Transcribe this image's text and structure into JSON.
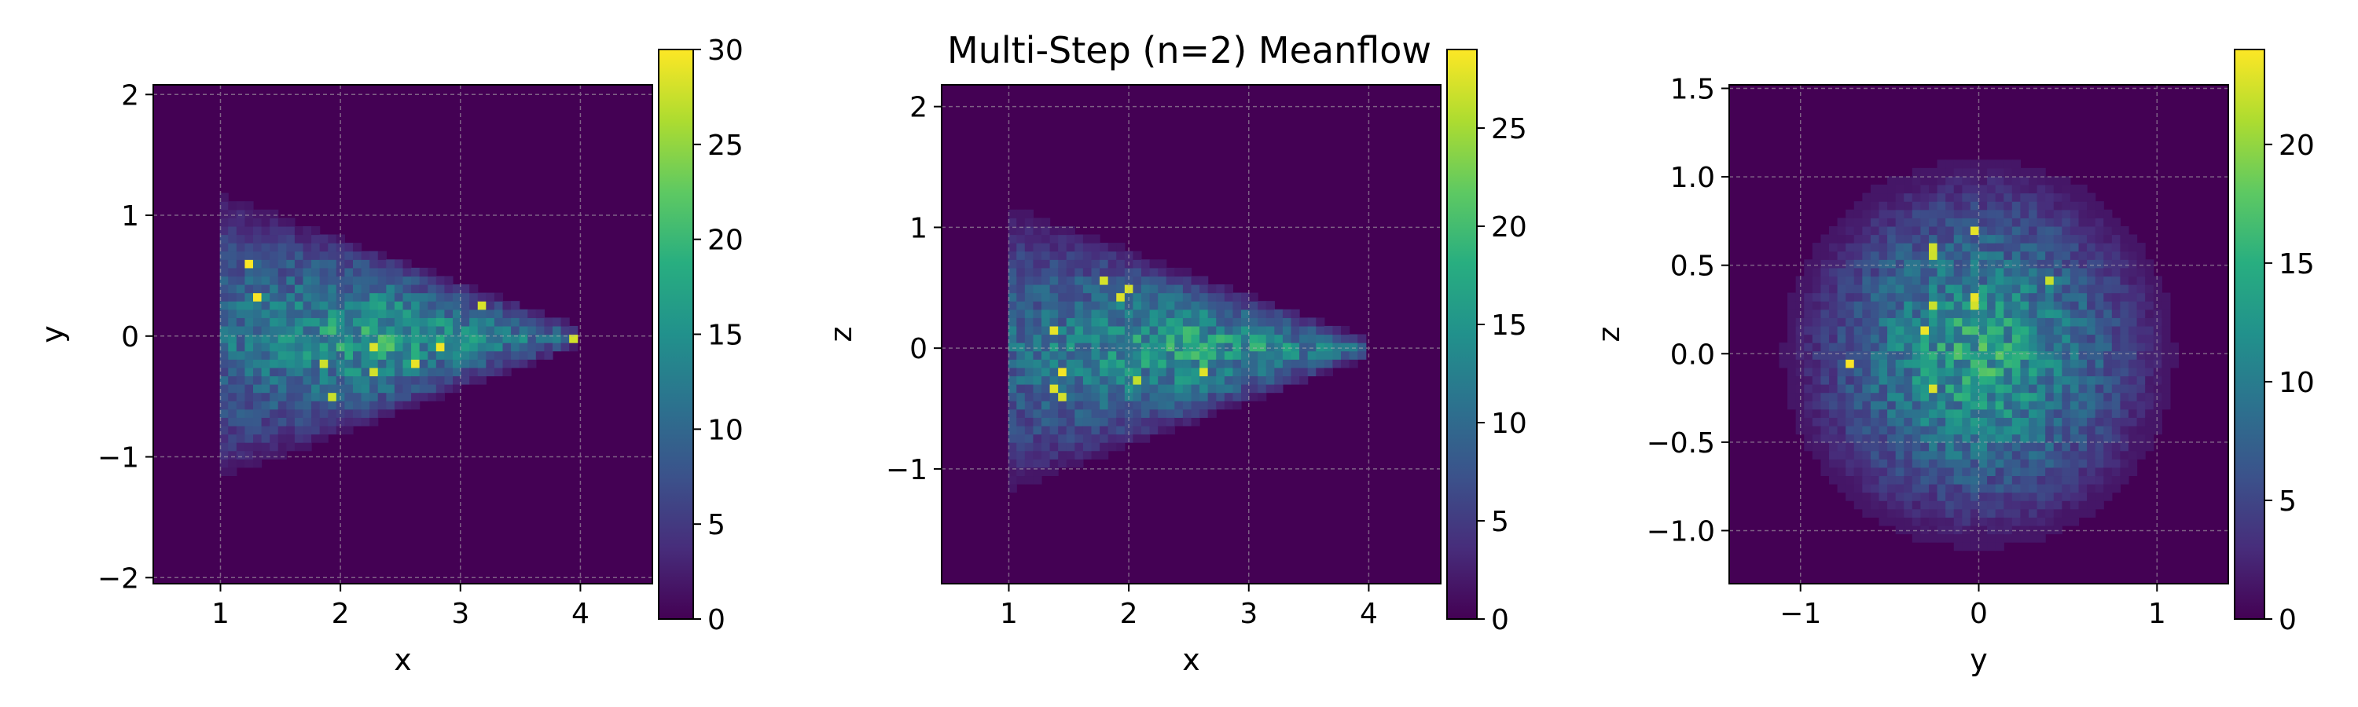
{
  "figure": {
    "title": "Multi-Step (n=2) Meanflow"
  },
  "chart_data": [
    {
      "type": "heatmap",
      "title": "",
      "xlabel": "x",
      "ylabel": "y",
      "xlim": [
        0.44,
        4.6
      ],
      "ylim": [
        -2.05,
        2.08
      ],
      "xticks": [
        1,
        2,
        3,
        4
      ],
      "xtick_labels": [
        "1",
        "2",
        "3",
        "4"
      ],
      "yticks": [
        -2,
        -1,
        0,
        1,
        2
      ],
      "ytick_labels": [
        "−2",
        "−1",
        "0",
        "1",
        "2"
      ],
      "grid": true,
      "colormap": "viridis",
      "colorbar": {
        "min": 0,
        "max": 30,
        "ticks": [
          0,
          5,
          10,
          15,
          20,
          25,
          30
        ],
        "tick_labels": [
          "0",
          "5",
          "10",
          "15",
          "20",
          "25",
          "30"
        ]
      },
      "density": {
        "shape": "arrowhead",
        "x_range": [
          1.0,
          4.0
        ],
        "apex": 4.0,
        "back_half_width": 1.1,
        "center": [
          2.4,
          0.0
        ],
        "peak_counts": 30,
        "note": "2D histogram of samples projected on x–y"
      }
    },
    {
      "type": "heatmap",
      "title": "",
      "xlabel": "x",
      "ylabel": "z",
      "xlim": [
        0.44,
        4.6
      ],
      "ylim": [
        -1.95,
        2.18
      ],
      "xticks": [
        1,
        2,
        3,
        4
      ],
      "xtick_labels": [
        "1",
        "2",
        "3",
        "4"
      ],
      "yticks": [
        -1,
        0,
        1,
        2
      ],
      "ytick_labels": [
        "−1",
        "0",
        "1",
        "2"
      ],
      "grid": true,
      "colormap": "viridis",
      "colorbar": {
        "min": 0,
        "max": 29,
        "ticks": [
          0,
          5,
          10,
          15,
          20,
          25
        ],
        "tick_labels": [
          "0",
          "5",
          "10",
          "15",
          "20",
          "25"
        ]
      },
      "density": {
        "shape": "arrowhead",
        "x_range": [
          1.0,
          4.0
        ],
        "apex": 4.0,
        "back_half_width": 1.1,
        "center": [
          2.5,
          0.0
        ],
        "peak_counts": 29,
        "note": "2D histogram of samples projected on x–z"
      }
    },
    {
      "type": "heatmap",
      "title": "",
      "xlabel": "y",
      "ylabel": "z",
      "xlim": [
        -1.4,
        1.4
      ],
      "ylim": [
        -1.3,
        1.52
      ],
      "xticks": [
        -1,
        0,
        1
      ],
      "xtick_labels": [
        "−1",
        "0",
        "1"
      ],
      "yticks": [
        -1.0,
        -0.5,
        0.0,
        0.5,
        1.0,
        1.5
      ],
      "ytick_labels": [
        "−1.0",
        "−0.5",
        "0.0",
        "0.5",
        "1.0",
        "1.5"
      ],
      "grid": true,
      "colormap": "viridis",
      "colorbar": {
        "min": 0,
        "max": 24,
        "ticks": [
          0,
          5,
          10,
          15,
          20
        ],
        "tick_labels": [
          "0",
          "5",
          "10",
          "15",
          "20"
        ]
      },
      "density": {
        "shape": "disc",
        "radius": 1.1,
        "center": [
          0.0,
          0.0
        ],
        "peak_counts": 24,
        "note": "2D histogram of samples projected on y–z"
      }
    }
  ]
}
